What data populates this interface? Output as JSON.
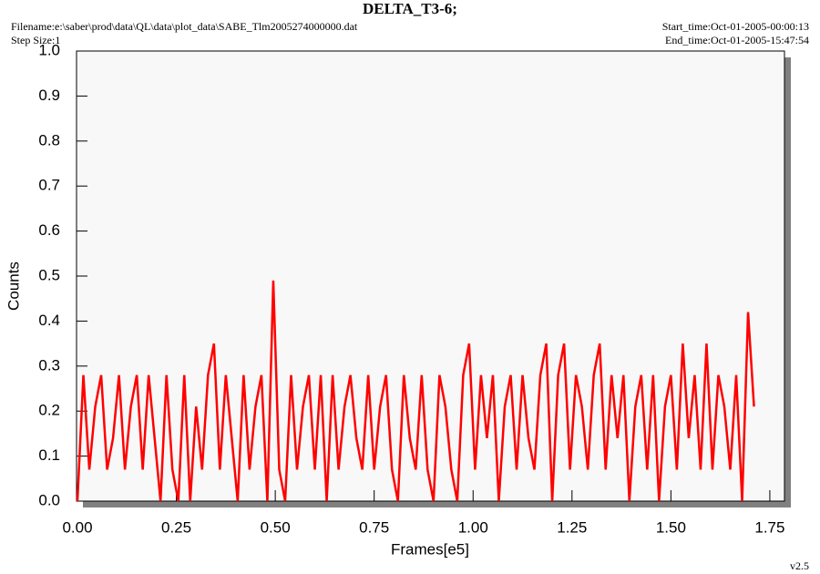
{
  "chart_data": {
    "type": "line",
    "title": "DELTA_T3-6;",
    "filename": "Filename:e:\\saber\\prod\\data\\QL\\data\\plot_data\\SABE_Tlm2005274000000.dat",
    "step_size": "Step Size:1",
    "start_time": "Start_time:Oct-01-2005-00:00:13",
    "end_time": "End_time:Oct-01-2005-15:47:54",
    "version": "v2.5",
    "xlabel": "Frames[e5]",
    "ylabel": "Counts",
    "color": "#ff0000",
    "xlim": [
      0,
      1.787
    ],
    "ylim": [
      0,
      1
    ],
    "xticks": [
      {
        "value": 0,
        "label": "0.00"
      },
      0.25,
      {
        "value": 0.5,
        "label": "0.50"
      },
      0.75,
      {
        "value": 1,
        "label": "1.00"
      },
      1.25,
      {
        "value": 1.5,
        "label": "1.50"
      },
      1.75
    ],
    "yticks": [
      {
        "value": 0,
        "label": "0.0"
      },
      0.1,
      0.2,
      0.3,
      0.4,
      0.5,
      0.6,
      0.7,
      0.8,
      0.9,
      {
        "value": 1,
        "label": "1.0"
      }
    ],
    "x": [
      0,
      0.015,
      0.03,
      0.045,
      0.06,
      0.075,
      0.09,
      0.105,
      0.12,
      0.135,
      0.15,
      0.165,
      0.18,
      0.195,
      0.21,
      0.225,
      0.24,
      0.255,
      0.27,
      0.285,
      0.3,
      0.315,
      0.33,
      0.345,
      0.36,
      0.375,
      0.39,
      0.405,
      0.42,
      0.435,
      0.45,
      0.465,
      0.48,
      0.495,
      0.51,
      0.525,
      0.54,
      0.555,
      0.57,
      0.585,
      0.6,
      0.615,
      0.63,
      0.645,
      0.66,
      0.675,
      0.69,
      0.705,
      0.72,
      0.735,
      0.75,
      0.765,
      0.78,
      0.795,
      0.81,
      0.825,
      0.84,
      0.855,
      0.87,
      0.885,
      0.9,
      0.915,
      0.93,
      0.945,
      0.96,
      0.975,
      0.99,
      1.005,
      1.02,
      1.035,
      1.05,
      1.065,
      1.08,
      1.095,
      1.11,
      1.125,
      1.14,
      1.155,
      1.17,
      1.185,
      1.2,
      1.215,
      1.23,
      1.245,
      1.26,
      1.275,
      1.29,
      1.305,
      1.32,
      1.335,
      1.35,
      1.365,
      1.38,
      1.395,
      1.41,
      1.425,
      1.44,
      1.455,
      1.47,
      1.485,
      1.5,
      1.515,
      1.53,
      1.545,
      1.56,
      1.575,
      1.59,
      1.605,
      1.62,
      1.635,
      1.65,
      1.665,
      1.68,
      1.695,
      1.71
    ],
    "values": [
      0,
      0.28,
      0.07,
      0.21,
      0.28,
      0.07,
      0.14,
      0.28,
      0.07,
      0.21,
      0.28,
      0.07,
      0.28,
      0.14,
      0,
      0.28,
      0.07,
      0,
      0.28,
      0,
      0.21,
      0.07,
      0.28,
      0.35,
      0.07,
      0.28,
      0.14,
      0,
      0.28,
      0.07,
      0.21,
      0.28,
      0,
      0.49,
      0.07,
      0,
      0.28,
      0.07,
      0.21,
      0.28,
      0.07,
      0.28,
      0,
      0.28,
      0.07,
      0.21,
      0.28,
      0.14,
      0.07,
      0.28,
      0.07,
      0.21,
      0.28,
      0.07,
      0,
      0.28,
      0.14,
      0.07,
      0.28,
      0.07,
      0,
      0.28,
      0.21,
      0.07,
      0,
      0.28,
      0.35,
      0.07,
      0.28,
      0.14,
      0.28,
      0,
      0.21,
      0.28,
      0.07,
      0.28,
      0.14,
      0.07,
      0.28,
      0.35,
      0,
      0.28,
      0.35,
      0.07,
      0.28,
      0.21,
      0.07,
      0.28,
      0.35,
      0.07,
      0.28,
      0.14,
      0.28,
      0,
      0.21,
      0.28,
      0.07,
      0.28,
      0,
      0.21,
      0.28,
      0.07,
      0.35,
      0.14,
      0.28,
      0.07,
      0.35,
      0.07,
      0.28,
      0.21,
      0.07,
      0.28,
      0,
      0.42,
      0.21
    ]
  }
}
